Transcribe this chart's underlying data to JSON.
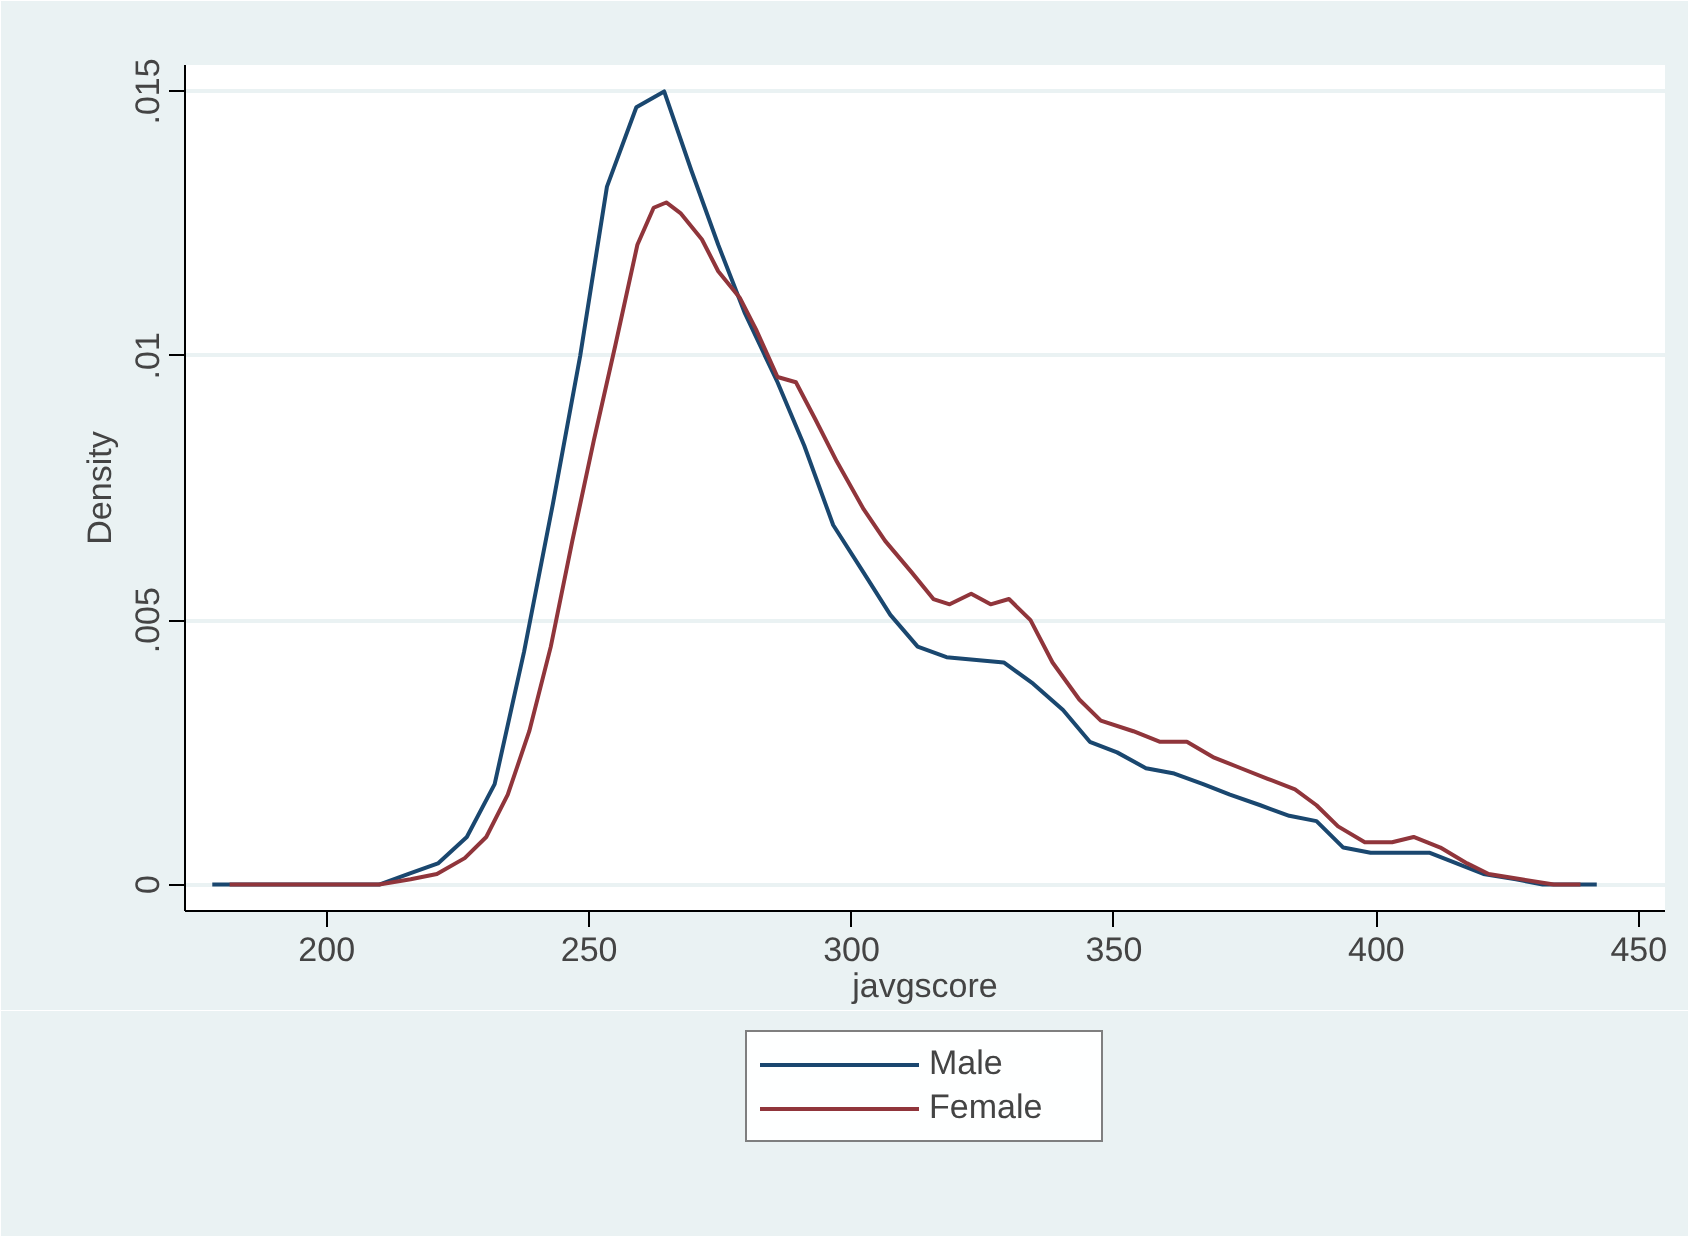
{
  "chart_data": {
    "type": "line",
    "xlabel": "javgscore",
    "ylabel": "Density",
    "xlim": [
      173,
      455
    ],
    "ylim": [
      -0.0005,
      0.0155
    ],
    "xticks": [
      200,
      250,
      300,
      350,
      400,
      450
    ],
    "yticks": [
      {
        "value": 0,
        "label": "0"
      },
      {
        "value": 0.005,
        "label": ".005"
      },
      {
        "value": 0.01,
        "label": ".01"
      },
      {
        "value": 0.015,
        "label": ".015"
      }
    ],
    "grid": "y",
    "legend": "bottom",
    "line_style": "solid",
    "marker": "none",
    "series": [
      {
        "name": "Male",
        "color": "#1a476f",
        "x": [
          178.2,
          200,
          210,
          215.6,
          221.2,
          226.7,
          232,
          237.6,
          243.1,
          248.3,
          253.4,
          259,
          264.3,
          269.5,
          274.6,
          279.7,
          285.9,
          291,
          296.5,
          302.3,
          307.4,
          312.6,
          318.1,
          329,
          334.6,
          340.3,
          345.4,
          350.6,
          356.1,
          361.5,
          367,
          372.1,
          377.9,
          383.4,
          388.6,
          393.7,
          398.9,
          404.6,
          410.2,
          415.3,
          420.4,
          426.6,
          431.7,
          442
        ],
        "values": [
          0,
          0,
          0,
          0.0002,
          0.0004,
          0.0009,
          0.0019,
          0.0044,
          0.0072,
          0.01,
          0.0132,
          0.0147,
          0.015,
          0.0135,
          0.0121,
          0.0108,
          0.0095,
          0.0083,
          0.0068,
          0.0059,
          0.0051,
          0.0045,
          0.0043,
          0.0042,
          0.0038,
          0.0033,
          0.0027,
          0.0025,
          0.0022,
          0.0021,
          0.0019,
          0.0017,
          0.0015,
          0.0013,
          0.0012,
          0.0007,
          0.0006,
          0.0006,
          0.0006,
          0.0004,
          0.0002,
          0.0001,
          0,
          0
        ]
      },
      {
        "name": "Female",
        "color": "#90353b",
        "x": [
          181.5,
          200,
          210,
          216,
          221,
          226.3,
          230.4,
          234.5,
          238.6,
          242.7,
          246.8,
          250.9,
          255,
          259.2,
          262.3,
          264.7,
          267.4,
          271.5,
          274.6,
          278.7,
          281.8,
          285.9,
          289.4,
          293.1,
          297.2,
          302.3,
          306.4,
          311.5,
          315.6,
          318.7,
          322.8,
          326.5,
          330,
          334.1,
          338.3,
          343.4,
          347.5,
          353.7,
          358.8,
          363.9,
          369.1,
          374.2,
          379.3,
          384.5,
          388.6,
          392.7,
          397.8,
          403,
          407.1,
          412.2,
          417.3,
          421.4,
          427.6,
          433.8,
          438.9
        ],
        "values": [
          0,
          0,
          0,
          0.0001,
          0.0002,
          0.0005,
          0.0009,
          0.0017,
          0.0029,
          0.0045,
          0.0065,
          0.0084,
          0.0102,
          0.0121,
          0.0128,
          0.0129,
          0.0127,
          0.0122,
          0.0116,
          0.0111,
          0.0105,
          0.0096,
          0.0095,
          0.0088,
          0.008,
          0.0071,
          0.0065,
          0.0059,
          0.0054,
          0.0053,
          0.0055,
          0.0053,
          0.0054,
          0.005,
          0.0042,
          0.0035,
          0.0031,
          0.0029,
          0.0027,
          0.0027,
          0.0024,
          0.0022,
          0.002,
          0.0018,
          0.0015,
          0.0011,
          0.0008,
          0.0008,
          0.0009,
          0.0007,
          0.0004,
          0.0002,
          0.0001,
          0,
          0
        ]
      }
    ]
  }
}
